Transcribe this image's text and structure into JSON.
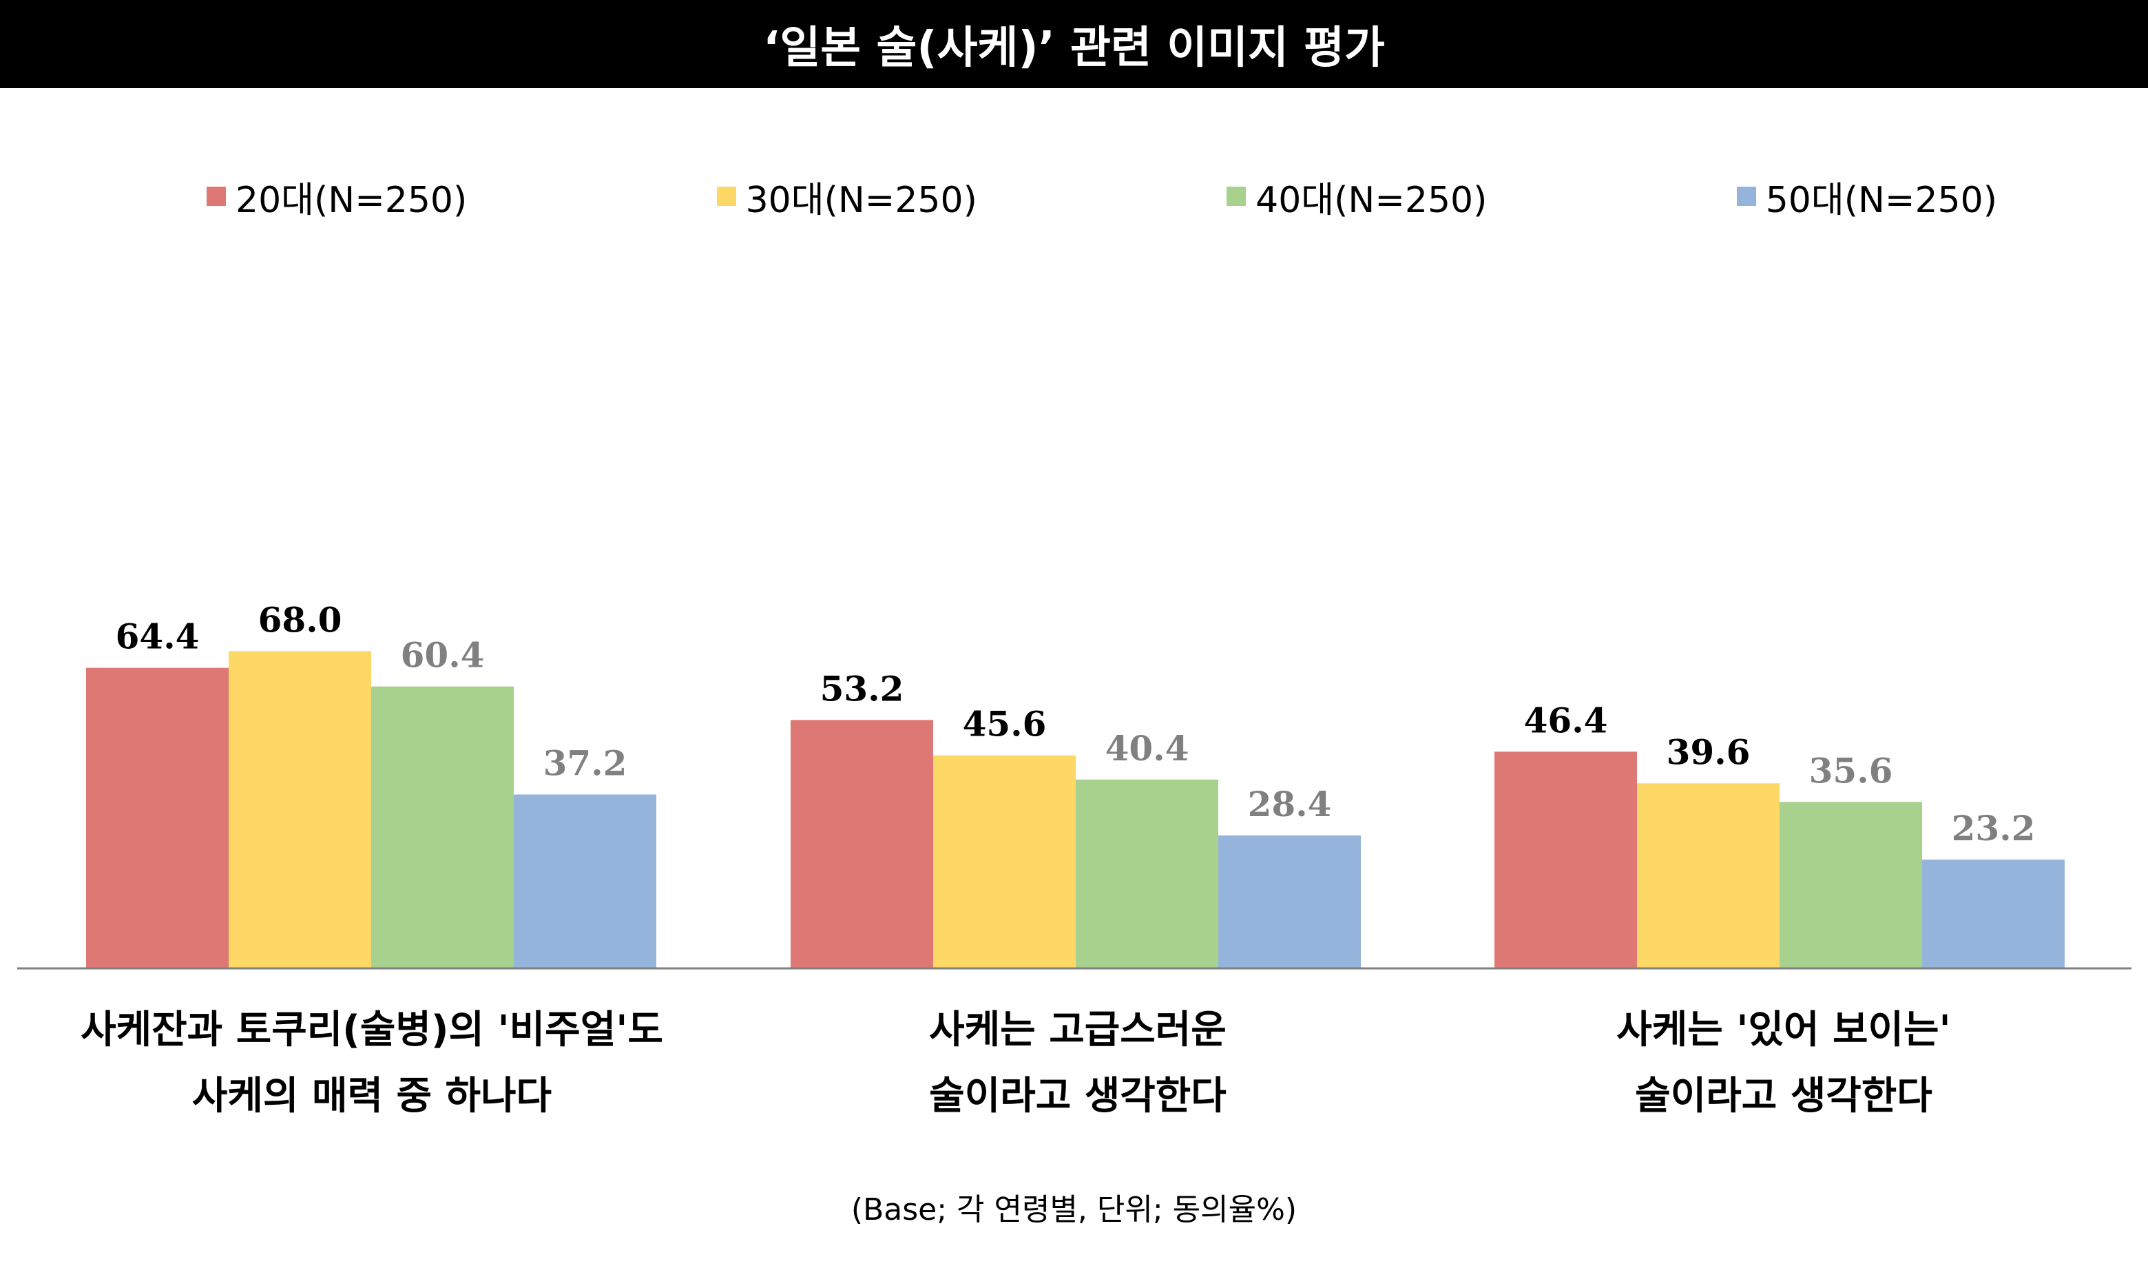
{
  "title": "‘일본 술(사케)’ 관련 이미지 평가",
  "footnote": "(Base; 각 연령별, 단위; 동의율%)",
  "chart_data": {
    "type": "bar",
    "categories": [
      [
        "사케잔과 토쿠리(술병)의 '비주얼'도",
        "사케의 매력 중 하나다"
      ],
      [
        "사케는 고급스러운",
        "술이라고 생각한다"
      ],
      [
        "사케는 '있어 보이는'",
        "술이라고 생각한다"
      ]
    ],
    "series": [
      {
        "name": "20대(N=250)",
        "color": "#DE7874",
        "label_color": "#000000",
        "values": [
          64.4,
          53.2,
          46.4
        ]
      },
      {
        "name": "30대(N=250)",
        "color": "#FDD866",
        "label_color": "#000000",
        "values": [
          68.0,
          45.6,
          39.6
        ]
      },
      {
        "name": "40대(N=250)",
        "color": "#A9D18E",
        "label_color": "#808080",
        "values": [
          60.4,
          40.4,
          35.6
        ]
      },
      {
        "name": "50대(N=250)",
        "color": "#95B4DB",
        "label_color": "#808080",
        "values": [
          37.2,
          28.4,
          23.2
        ]
      }
    ],
    "value_labels": [
      [
        "64.4",
        "53.2",
        "46.4"
      ],
      [
        "68.0",
        "45.6",
        "39.6"
      ],
      [
        "60.4",
        "40.4",
        "35.6"
      ],
      [
        "37.2",
        "28.4",
        "23.2"
      ]
    ],
    "ylim": [
      0,
      100
    ],
    "grid": false,
    "legend_position": "top"
  }
}
